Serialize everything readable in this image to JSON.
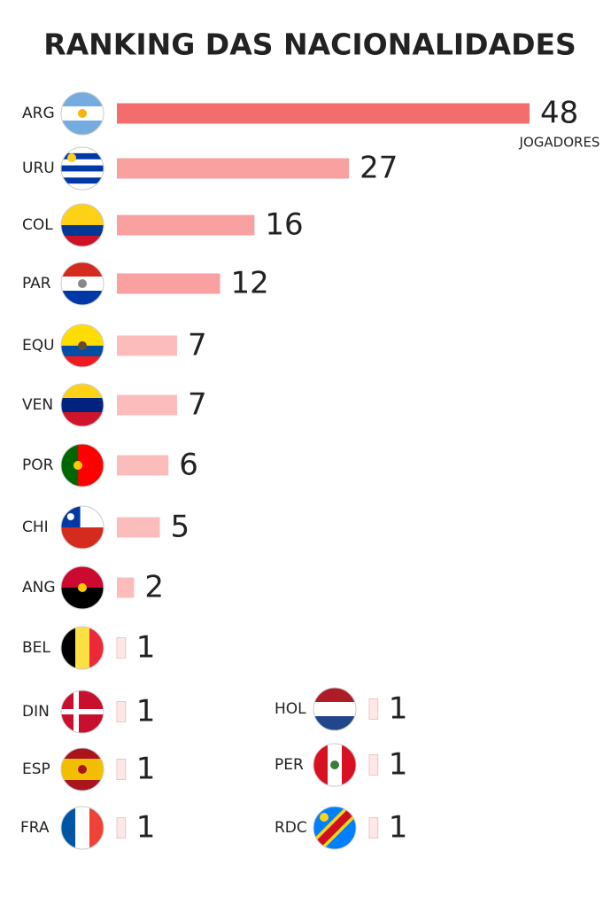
{
  "chart_data": {
    "type": "bar",
    "orientation": "horizontal",
    "title": "RANKING DAS NACIONALIDADES",
    "categories": [
      "ARG",
      "URU",
      "COL",
      "PAR",
      "EQU",
      "VEN",
      "POR",
      "CHI",
      "ANG",
      "BEL",
      "DIN",
      "ESP",
      "FRA",
      "HOL",
      "PER",
      "RDC"
    ],
    "values": [
      48,
      27,
      16,
      12,
      7,
      7,
      6,
      5,
      2,
      1,
      1,
      1,
      1,
      1,
      1,
      1
    ],
    "colors": [
      "#f36d6d",
      "#f9a0a0",
      "#f9a0a0",
      "#f9a0a0",
      "#fdbcbc",
      "#fdbcbc",
      "#fdbcbc",
      "#fdbcbc",
      "#fdbcbc",
      "#fde8e8",
      "#fde8e8",
      "#fde8e8",
      "#fde8e8",
      "#fde8e8",
      "#fde8e8",
      "#fde8e8"
    ],
    "annotation": "JOGADORES"
  }
}
